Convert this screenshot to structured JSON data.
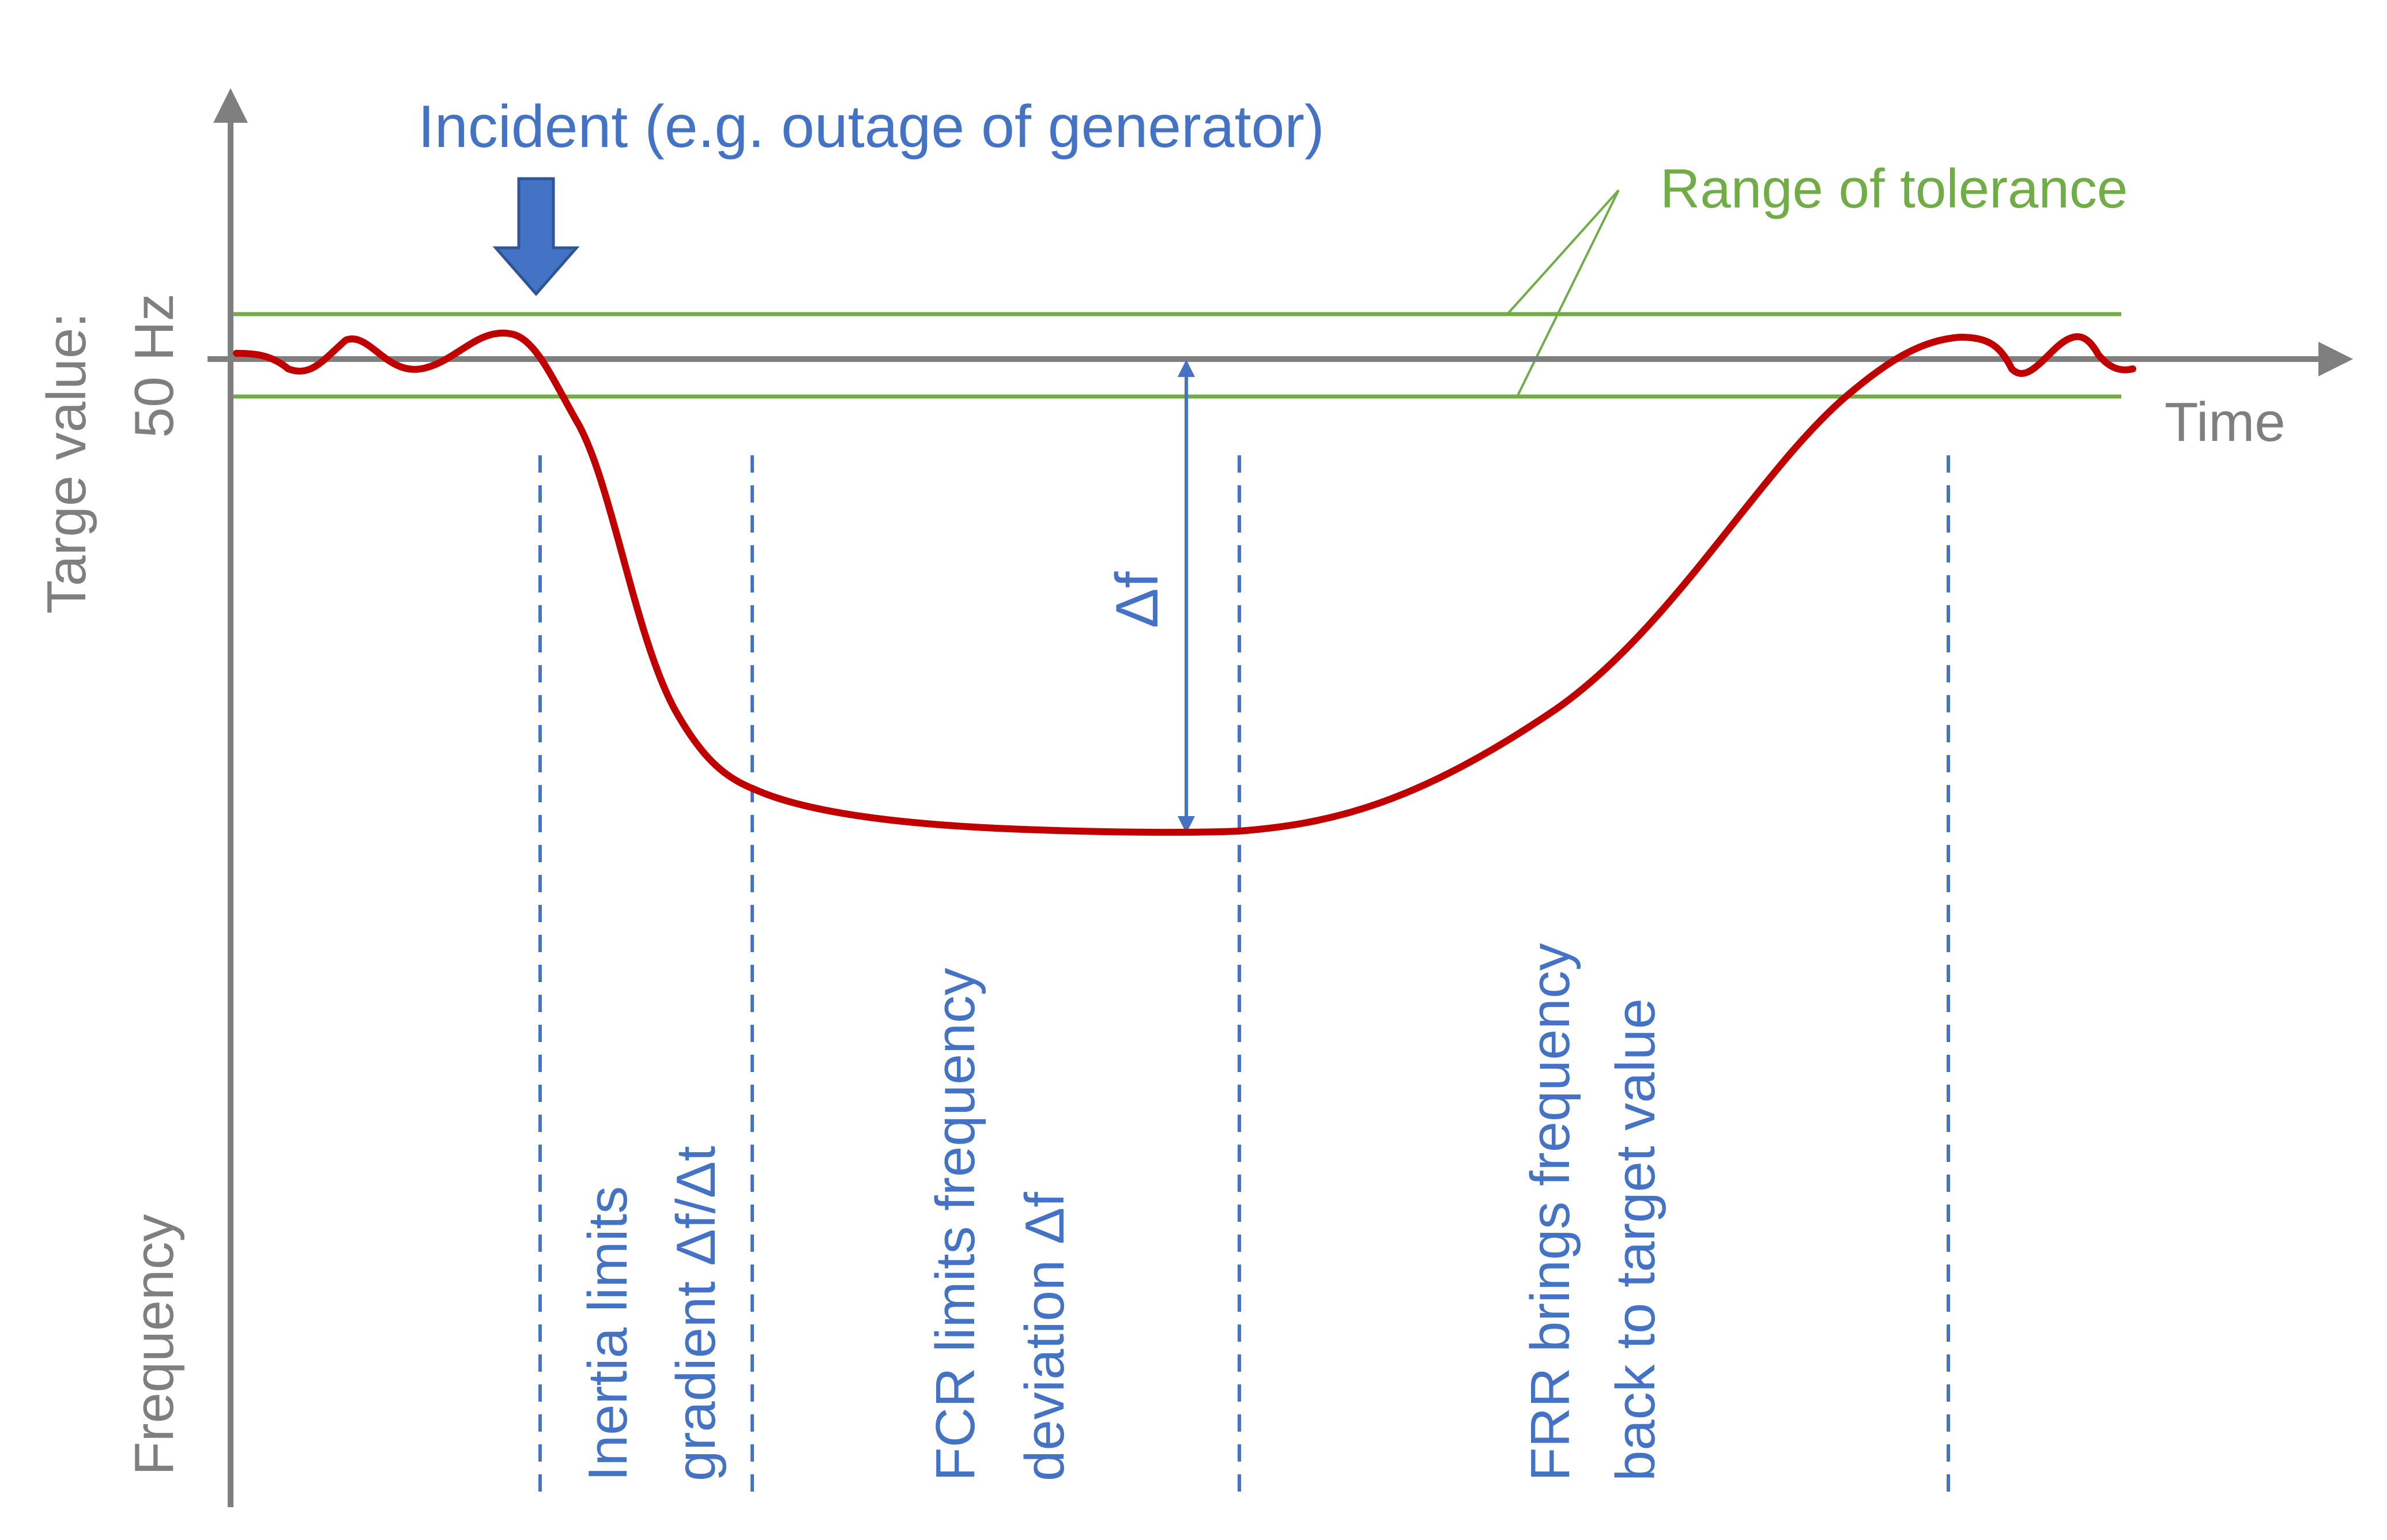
{
  "colors": {
    "axis": "#7F7F7F",
    "tolerance": "#70AD47",
    "annotation": "#4472C4",
    "frequency_curve": "#C00000",
    "background": "#FFFFFF"
  },
  "axes": {
    "x_label": "Time",
    "y_label": "Frequency",
    "target_line1": "Targe value:",
    "target_line2": "50 Hz"
  },
  "incident": {
    "label": "Incident (e.g. outage of generator)",
    "icon": "down-arrow-icon"
  },
  "tolerance": {
    "label": "Range of tolerance"
  },
  "deviation": {
    "label": "Δf"
  },
  "phases": [
    {
      "line1": "Inertia limits",
      "line2": "gradient Δf/Δt"
    },
    {
      "line1": "FCR limits frequency",
      "line2": "deviation Δf"
    },
    {
      "line1": "FRR brings frequency",
      "line2": "back to target value"
    }
  ]
}
